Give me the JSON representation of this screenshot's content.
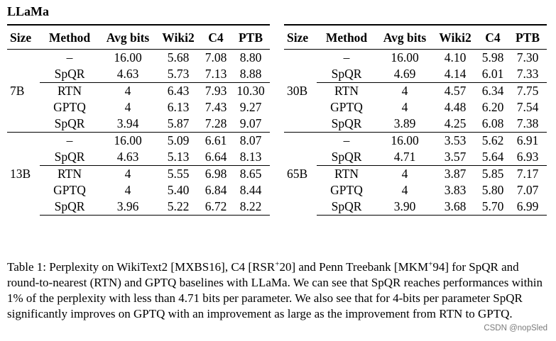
{
  "title": "LLaMa",
  "headers": {
    "size": "Size",
    "method": "Method",
    "avg_bits": "Avg bits",
    "wiki2": "Wiki2",
    "c4": "C4",
    "ptb": "PTB"
  },
  "left_table": [
    {
      "size": "7B",
      "rows": [
        {
          "method": "–",
          "bits": "16.00",
          "wiki2": "5.68",
          "c4": "7.08",
          "ptb": "8.80"
        },
        {
          "method": "SpQR",
          "bits": "4.63",
          "wiki2": "5.73",
          "c4": "7.13",
          "ptb": "8.88"
        },
        {
          "method": "RTN",
          "bits": "4",
          "wiki2": "6.43",
          "c4": "7.93",
          "ptb": "10.30"
        },
        {
          "method": "GPTQ",
          "bits": "4",
          "wiki2": "6.13",
          "c4": "7.43",
          "ptb": "9.27"
        },
        {
          "method": "SpQR",
          "bits": "3.94",
          "wiki2": "5.87",
          "c4": "7.28",
          "ptb": "9.07"
        }
      ]
    },
    {
      "size": "13B",
      "rows": [
        {
          "method": "–",
          "bits": "16.00",
          "wiki2": "5.09",
          "c4": "6.61",
          "ptb": "8.07"
        },
        {
          "method": "SpQR",
          "bits": "4.63",
          "wiki2": "5.13",
          "c4": "6.64",
          "ptb": "8.13"
        },
        {
          "method": "RTN",
          "bits": "4",
          "wiki2": "5.55",
          "c4": "6.98",
          "ptb": "8.65"
        },
        {
          "method": "GPTQ",
          "bits": "4",
          "wiki2": "5.40",
          "c4": "6.84",
          "ptb": "8.44"
        },
        {
          "method": "SpQR",
          "bits": "3.96",
          "wiki2": "5.22",
          "c4": "6.72",
          "ptb": "8.22"
        }
      ]
    }
  ],
  "right_table": [
    {
      "size": "30B",
      "rows": [
        {
          "method": "–",
          "bits": "16.00",
          "wiki2": "4.10",
          "c4": "5.98",
          "ptb": "7.30"
        },
        {
          "method": "SpQR",
          "bits": "4.69",
          "wiki2": "4.14",
          "c4": "6.01",
          "ptb": "7.33"
        },
        {
          "method": "RTN",
          "bits": "4",
          "wiki2": "4.57",
          "c4": "6.34",
          "ptb": "7.75"
        },
        {
          "method": "GPTQ",
          "bits": "4",
          "wiki2": "4.48",
          "c4": "6.20",
          "ptb": "7.54"
        },
        {
          "method": "SpQR",
          "bits": "3.89",
          "wiki2": "4.25",
          "c4": "6.08",
          "ptb": "7.38"
        }
      ]
    },
    {
      "size": "65B",
      "rows": [
        {
          "method": "–",
          "bits": "16.00",
          "wiki2": "3.53",
          "c4": "5.62",
          "ptb": "6.91"
        },
        {
          "method": "SpQR",
          "bits": "4.71",
          "wiki2": "3.57",
          "c4": "5.64",
          "ptb": "6.93"
        },
        {
          "method": "RTN",
          "bits": "4",
          "wiki2": "3.87",
          "c4": "5.85",
          "ptb": "7.17"
        },
        {
          "method": "GPTQ",
          "bits": "4",
          "wiki2": "3.83",
          "c4": "5.80",
          "ptb": "7.07"
        },
        {
          "method": "SpQR",
          "bits": "3.90",
          "wiki2": "3.68",
          "c4": "5.70",
          "ptb": "6.99"
        }
      ]
    }
  ],
  "caption": {
    "part1": "Table 1: Perplexity on WikiText2 [MXBS16], C4 [RSR",
    "sup1": "+",
    "part2": "20] and Penn Treebank [MKM",
    "sup2": "+",
    "part3": "94] for SpQR and round-to-nearest (RTN) and GPTQ baselines with LLaMa. We can see that SpQR reaches performances within 1% of the perplexity with less than 4.71 bits per parameter. We also see that for 4-bits per parameter SpQR significantly improves on GPTQ with an improvement as large as the improvement from RTN to GPTQ."
  },
  "watermark": "CSDN @nopSled"
}
